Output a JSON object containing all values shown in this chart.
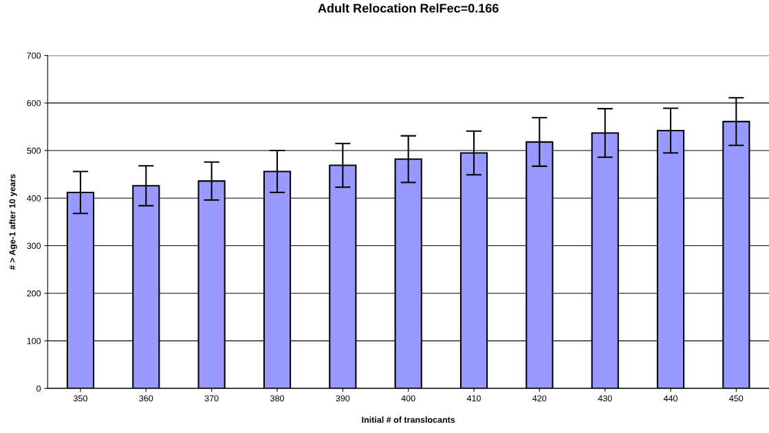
{
  "chart_data": {
    "type": "bar",
    "title": "Adult Relocation RelFec=0.166",
    "xlabel": "Initial # of translocants",
    "ylabel": "# > Age-1 after 10 years",
    "categories": [
      "350",
      "360",
      "370",
      "380",
      "390",
      "400",
      "410",
      "420",
      "430",
      "440",
      "450"
    ],
    "series": [
      {
        "color": "#9999ff",
        "values": [
          412,
          426,
          436,
          456,
          469,
          482,
          495,
          518,
          537,
          542,
          561
        ],
        "errors": [
          44,
          42,
          40,
          44,
          46,
          49,
          46,
          51,
          51,
          47,
          50
        ]
      }
    ],
    "ylim": [
      0,
      700
    ],
    "yticks": [
      0,
      100,
      200,
      300,
      400,
      500,
      600,
      700
    ],
    "grid": "y",
    "legend": false
  }
}
